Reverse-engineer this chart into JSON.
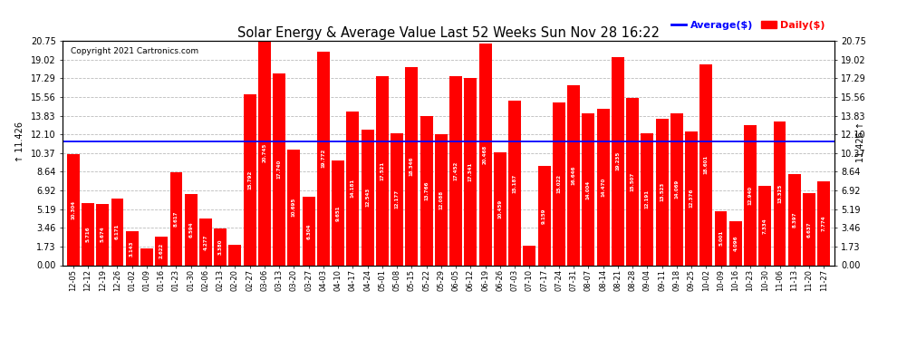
{
  "title": "Solar Energy & Average Value Last 52 Weeks Sun Nov 28 16:22",
  "copyright": "Copyright 2021 Cartronics.com",
  "average_label": "Average($)",
  "daily_label": "Daily($)",
  "average_value": 11.426,
  "ylim": [
    0.0,
    20.75
  ],
  "yticks": [
    0.0,
    1.73,
    3.46,
    5.19,
    6.92,
    8.64,
    10.37,
    12.1,
    13.83,
    15.56,
    17.29,
    19.02,
    20.75
  ],
  "bar_color": "#ff0000",
  "average_line_color": "#0000ff",
  "grid_color": "#bbbbbb",
  "categories": [
    "12-05",
    "12-12",
    "12-19",
    "12-26",
    "01-02",
    "01-09",
    "01-16",
    "01-23",
    "01-30",
    "02-06",
    "02-13",
    "02-20",
    "02-27",
    "03-06",
    "03-13",
    "03-20",
    "03-27",
    "04-03",
    "04-10",
    "04-17",
    "04-24",
    "05-01",
    "05-08",
    "05-15",
    "05-22",
    "05-29",
    "06-05",
    "06-12",
    "06-19",
    "06-26",
    "07-03",
    "07-10",
    "07-17",
    "07-24",
    "07-31",
    "08-07",
    "08-14",
    "08-21",
    "08-28",
    "09-04",
    "09-11",
    "09-18",
    "09-25",
    "10-02",
    "10-09",
    "10-16",
    "10-23",
    "10-30",
    "11-06",
    "11-13",
    "11-20",
    "11-27"
  ],
  "values": [
    10.304,
    5.716,
    5.674,
    6.171,
    3.143,
    1.579,
    2.622,
    8.617,
    6.594,
    4.277,
    3.38,
    1.921,
    15.792,
    20.745,
    17.74,
    10.695,
    6.304,
    19.772,
    9.651,
    14.181,
    12.543,
    17.521,
    12.177,
    18.346,
    13.766,
    12.088,
    17.452,
    17.341,
    20.468,
    10.459,
    15.187,
    1.814,
    9.159,
    15.022,
    16.646,
    14.004,
    14.47,
    19.235,
    15.507,
    12.191,
    13.523,
    14.069,
    12.376,
    18.601,
    5.001,
    4.096,
    12.94,
    7.334,
    13.325,
    8.397,
    6.637,
    7.774
  ]
}
